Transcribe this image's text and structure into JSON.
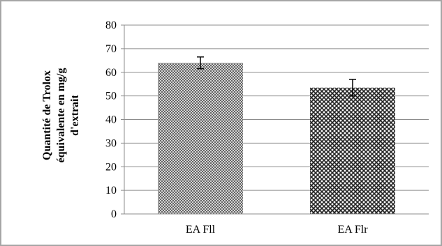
{
  "chart_data": {
    "type": "bar",
    "categories": [
      "EA Fll",
      "EA Flr"
    ],
    "values": [
      64,
      53.5
    ],
    "errors": [
      2.5,
      3.5
    ],
    "ylabel": [
      "Quantité de Trolox",
      "équivalente en mg/g",
      "d'extrait"
    ],
    "ylim": [
      0,
      80
    ],
    "yticks": [
      "0",
      "10",
      "20",
      "30",
      "40",
      "50",
      "60",
      "70",
      "80"
    ],
    "grid": true,
    "bar_patterns": [
      "fine-diagonal-grid",
      "coarse-diamond-grid"
    ]
  }
}
